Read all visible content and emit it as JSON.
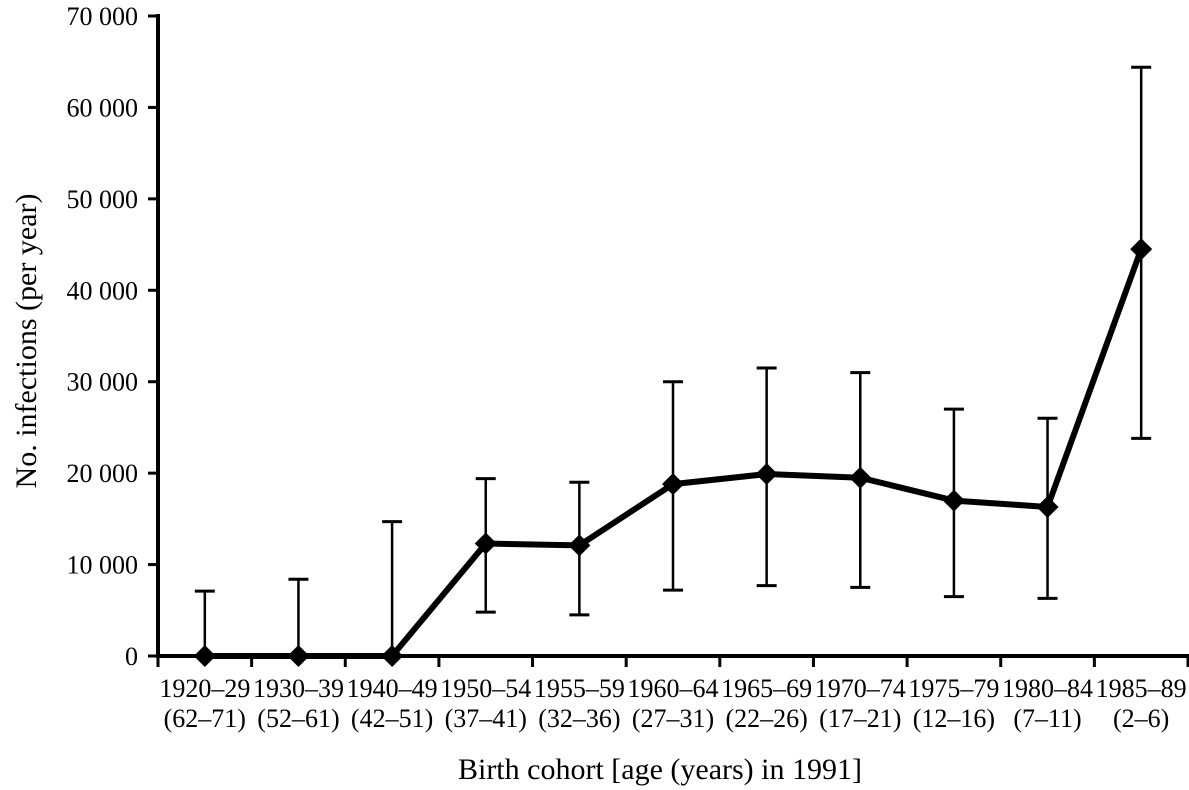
{
  "figure": {
    "background": "#ffffff",
    "ink": "#000000"
  },
  "chart_data": {
    "type": "line",
    "title": "",
    "xlabel": "Birth cohort [age (years) in 1991]",
    "ylabel": "No. infections (per year)",
    "ylim": [
      0,
      70000
    ],
    "ytick_interval": 10000,
    "ytick_values": [
      0,
      10000,
      20000,
      30000,
      40000,
      50000,
      60000,
      70000
    ],
    "ytick_labels": [
      "0",
      "10 000",
      "20 000",
      "30 000",
      "40 000",
      "50 000",
      "60 000",
      "70 000"
    ],
    "grid": false,
    "legend_position": "none",
    "marker": "diamond",
    "error_bars": "asymmetric-range",
    "categories": [
      {
        "cohort": "1920–29",
        "age": "(62–71)"
      },
      {
        "cohort": "1930–39",
        "age": "(52–61)"
      },
      {
        "cohort": "1940–49",
        "age": "(42–51)"
      },
      {
        "cohort": "1950–54",
        "age": "(37–41)"
      },
      {
        "cohort": "1955–59",
        "age": "(32–36)"
      },
      {
        "cohort": "1960–64",
        "age": "(27–31)"
      },
      {
        "cohort": "1965–69",
        "age": "(22–26)"
      },
      {
        "cohort": "1970–74",
        "age": "(17–21)"
      },
      {
        "cohort": "1975–79",
        "age": "(12–16)"
      },
      {
        "cohort": "1980–84",
        "age": "(7–11)"
      },
      {
        "cohort": "1985–89",
        "age": "(2–6)"
      }
    ],
    "series": [
      {
        "values": [
          0,
          0,
          0,
          12300,
          12100,
          18800,
          19900,
          19500,
          17000,
          16300,
          44500
        ],
        "error_low": [
          null,
          null,
          null,
          4800,
          4500,
          7200,
          7700,
          7500,
          6500,
          6300,
          23800
        ],
        "error_high": [
          7100,
          8400,
          14700,
          19400,
          19000,
          30000,
          31500,
          31000,
          27000,
          26000,
          64400
        ]
      }
    ]
  }
}
